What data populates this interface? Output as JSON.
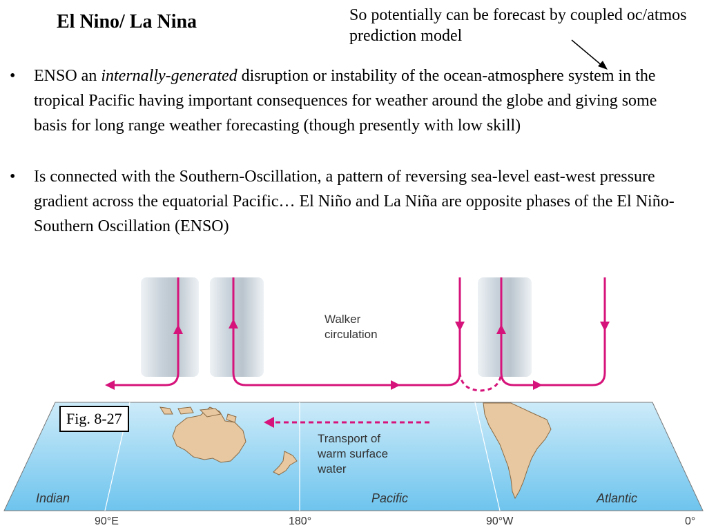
{
  "slide": {
    "title": "El Nino/ La Nina",
    "note": "So potentially can be forecast by coupled oc/atmos prediction model",
    "bullets": [
      {
        "pre": "ENSO an ",
        "emph": "internally-generated",
        "post": " disruption or instability of the ocean-atmosphere system in the tropical Pacific having important consequences for weather around the globe and giving some basis for long range weather forecasting (though presently with low skill)"
      },
      {
        "text": "Is connected with the Southern-Oscillation, a pattern of reversing sea-level east-west pressure gradient across the equatorial Pacific… El Niño and La Niña are opposite phases of the El Niño-Southern Oscillation (ENSO)"
      }
    ],
    "bullet_symbol": "•"
  },
  "figure": {
    "fig_label": "Fig. 8-27",
    "walker_label_1": "Walker",
    "walker_label_2": "circulation",
    "transport_label_1": "Transport of",
    "transport_label_2": "warm surface",
    "transport_label_3": "water",
    "ocean_labels": {
      "indian": "Indian",
      "pacific": "Pacific",
      "atlantic": "Atlantic"
    },
    "longitudes": [
      "90°E",
      "180°",
      "90°W",
      "0°"
    ],
    "colors": {
      "arrow": "#d6137a",
      "ocean_top": "#c9e9f8",
      "ocean_bottom": "#6cc3ee",
      "land": "#e7c8a0"
    }
  }
}
